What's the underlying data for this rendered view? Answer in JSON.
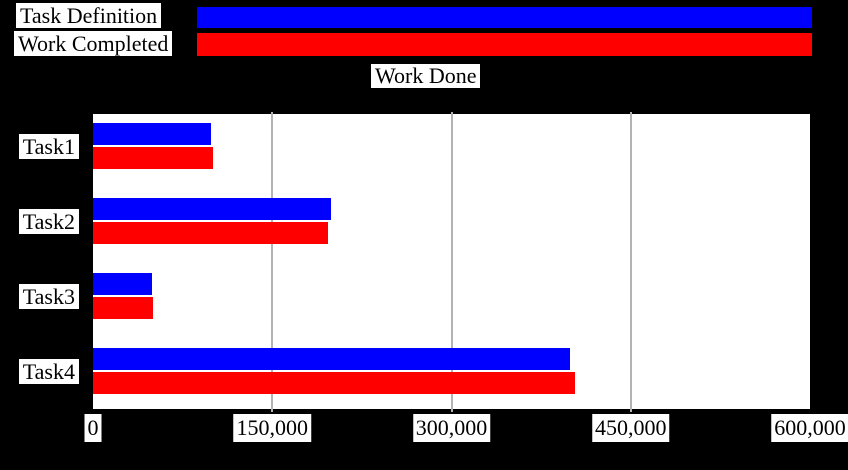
{
  "title": "Work Done",
  "legend": {
    "position": "top",
    "items": [
      {
        "label": "Task Definition",
        "color": "#0000ff"
      },
      {
        "label": "Work Completed",
        "color": "#ff0000"
      }
    ]
  },
  "chart_data": {
    "type": "bar",
    "orientation": "horizontal",
    "title": "Work Done",
    "categories": [
      "Task1",
      "Task2",
      "Task3",
      "Task4"
    ],
    "series": [
      {
        "name": "Task Definition",
        "color": "#0000ff",
        "values": [
          99000,
          199000,
          49000,
          399000
        ]
      },
      {
        "name": "Work Completed",
        "color": "#ff0000",
        "values": [
          100000,
          197000,
          50000,
          403000
        ]
      }
    ],
    "xlim": [
      0,
      600000
    ],
    "xticks": [
      0,
      150000,
      300000,
      450000,
      600000
    ],
    "xtick_labels": [
      "0",
      "150,000",
      "300,000",
      "450,000",
      "600,000"
    ],
    "gridline_values": [
      150000,
      300000,
      450000
    ],
    "legend_position": "top",
    "grid": true,
    "colors": {
      "background": "#000000",
      "plot_background": "#ffffff",
      "gridline": "#b3b3b3",
      "label_background": "#ffffff",
      "text": "#000000"
    }
  }
}
